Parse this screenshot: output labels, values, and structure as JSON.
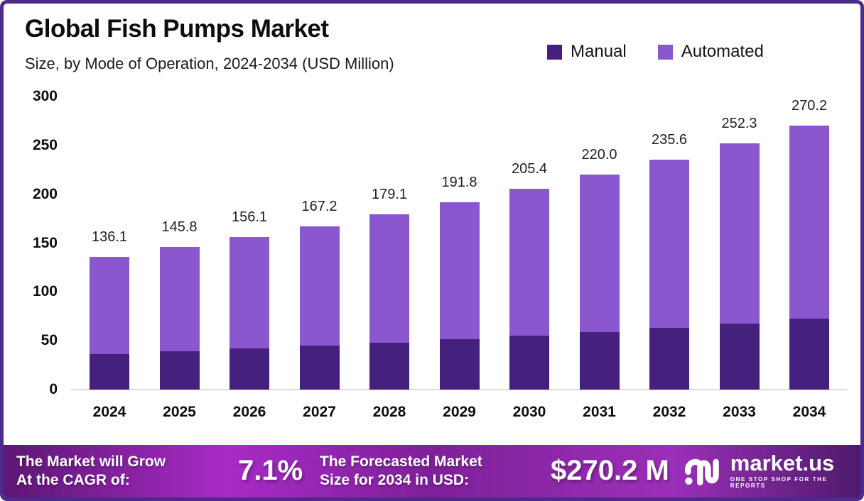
{
  "header": {
    "title": "Global Fish Pumps Market",
    "subtitle": "Size, by Mode of Operation, 2024-2034 (USD Million)"
  },
  "legend": [
    {
      "label": "Manual",
      "color": "#46207D"
    },
    {
      "label": "Automated",
      "color": "#8B57CE"
    }
  ],
  "chart_data": {
    "type": "bar",
    "stacked": true,
    "title": "Global Fish Pumps Market Size, by Mode of Operation, 2024-2034 (USD Million)",
    "categories": [
      "2024",
      "2025",
      "2026",
      "2027",
      "2028",
      "2029",
      "2030",
      "2031",
      "2032",
      "2033",
      "2034"
    ],
    "series": [
      {
        "name": "Manual",
        "color": "#46207D",
        "values": [
          36.4,
          39.0,
          41.8,
          44.8,
          48.0,
          51.4,
          55.1,
          59.0,
          63.2,
          67.7,
          72.5
        ]
      },
      {
        "name": "Automated",
        "color": "#8B57CE",
        "values": [
          99.7,
          106.8,
          114.3,
          122.4,
          131.1,
          140.4,
          150.3,
          161.0,
          172.4,
          184.6,
          197.7
        ]
      }
    ],
    "totals": [
      136.1,
      145.8,
      156.1,
      167.2,
      179.1,
      191.8,
      205.4,
      220.0,
      235.6,
      252.3,
      270.2
    ],
    "total_labels": [
      "136.1",
      "145.8",
      "156.1",
      "167.2",
      "179.1",
      "191.8",
      "205.4",
      "220.0",
      "235.6",
      "252.3",
      "270.2"
    ],
    "xlabel": "",
    "ylabel": "",
    "y_ticks": [
      0,
      50,
      100,
      150,
      200,
      250,
      300
    ],
    "ylim": [
      0,
      300
    ],
    "grid": false,
    "legend_position": "top-right"
  },
  "footer": {
    "cagr_label_line1": "The Market will Grow",
    "cagr_label_line2": "At the CAGR of:",
    "cagr_value": "7.1%",
    "forecast_label_line1": "The Forecasted Market",
    "forecast_label_line2": "Size for 2034 in USD:",
    "forecast_value": "$270.2 M",
    "brand_name": "market.us",
    "brand_tagline": "ONE STOP SHOP FOR THE REPORTS"
  },
  "colors": {
    "frame_border": "#4B2A8C",
    "manual": "#46207D",
    "automated": "#8B57CE",
    "banner_left": "#5C1773",
    "banner_bright": "#A82BC6",
    "banner_right": "#4E1A6B",
    "axis_line": "#DCDCDC"
  }
}
